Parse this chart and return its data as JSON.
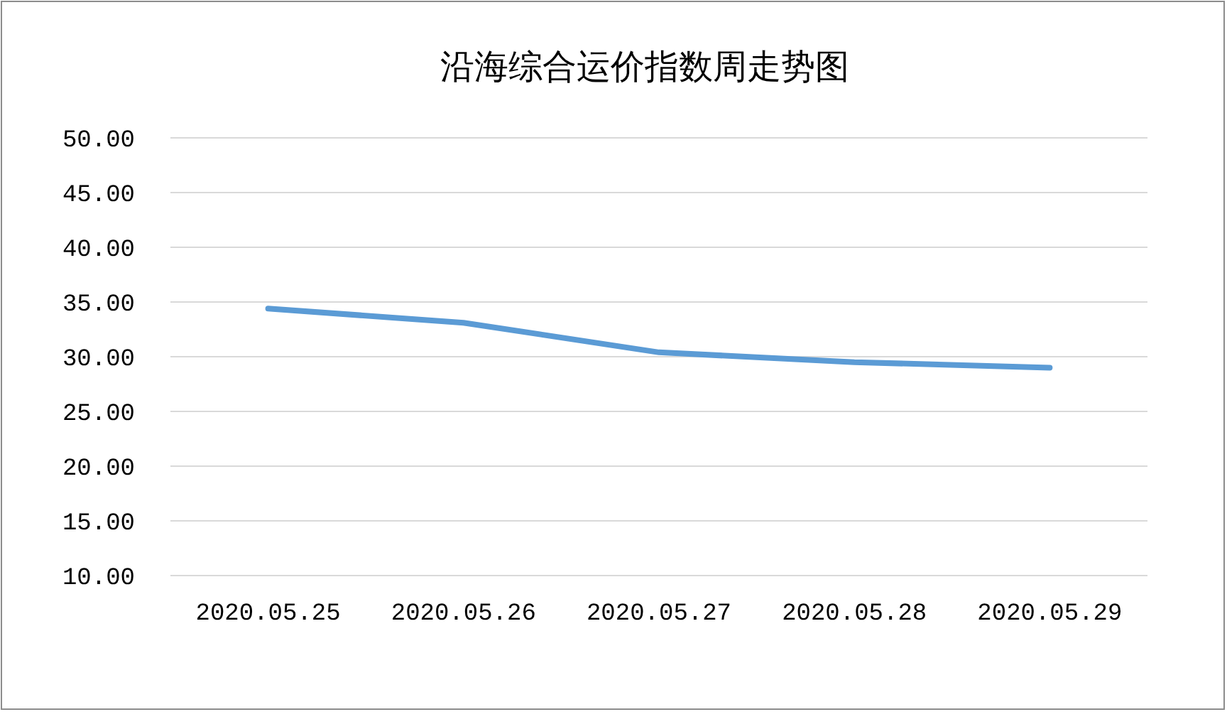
{
  "chart_data": {
    "type": "line",
    "title": "沿海综合运价指数周走势图",
    "categories": [
      "2020.05.25",
      "2020.05.26",
      "2020.05.27",
      "2020.05.28",
      "2020.05.29"
    ],
    "series": [
      {
        "color": "#5b9bd5",
        "values": [
          34.4,
          33.1,
          30.4,
          29.5,
          29.0
        ]
      }
    ],
    "ylim": [
      10,
      50
    ],
    "yticks": [
      {
        "value": 10,
        "label": "10.00"
      },
      {
        "value": 15,
        "label": "15.00"
      },
      {
        "value": 20,
        "label": "20.00"
      },
      {
        "value": 25,
        "label": "25.00"
      },
      {
        "value": 30,
        "label": "30.00"
      },
      {
        "value": 35,
        "label": "35.00"
      },
      {
        "value": 40,
        "label": "40.00"
      },
      {
        "value": 45,
        "label": "45.00"
      },
      {
        "value": 50,
        "label": "50.00"
      }
    ],
    "grid": "y",
    "marker": "none",
    "line_style": "solid"
  }
}
